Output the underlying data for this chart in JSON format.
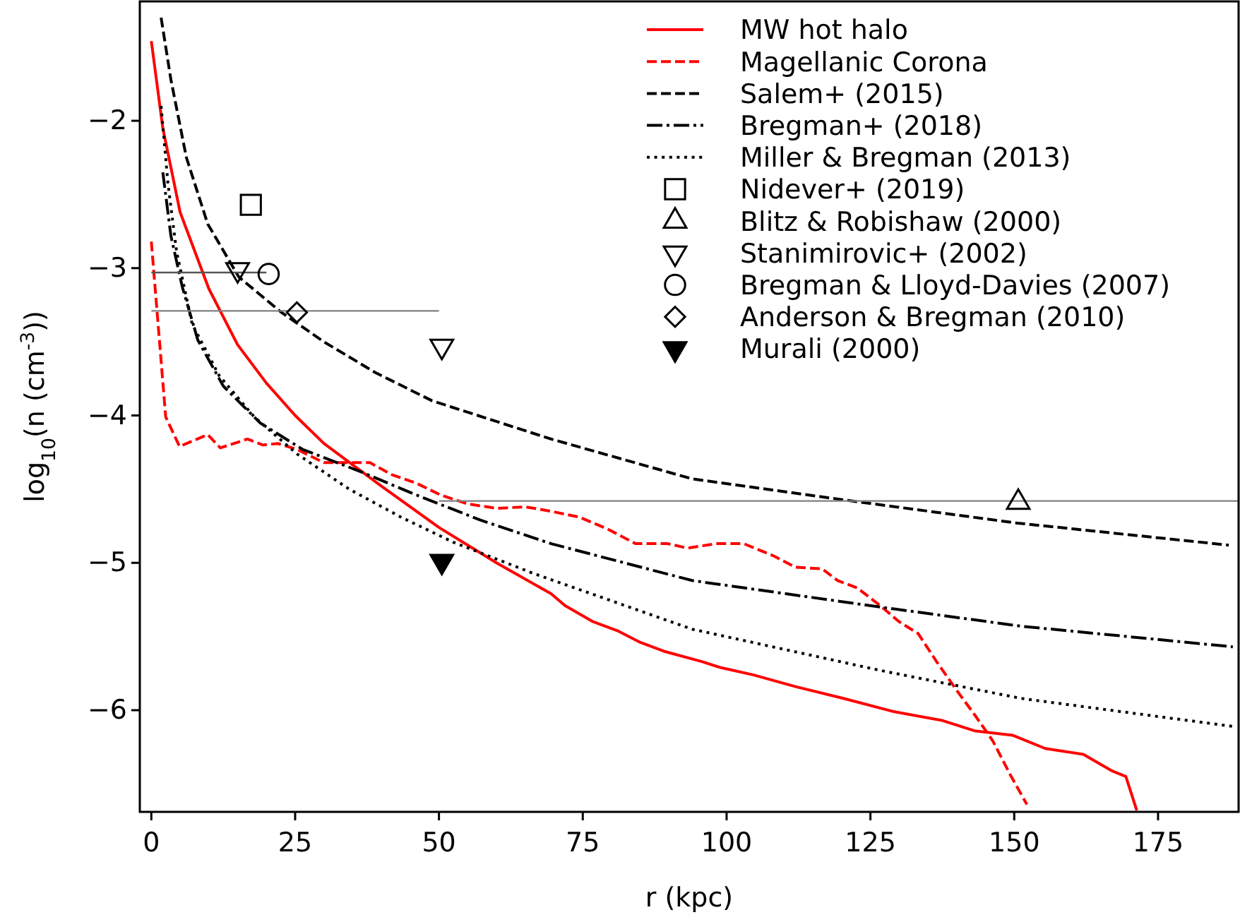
{
  "chart_data": {
    "type": "line",
    "xlabel": "r (kpc)",
    "ylabel": "log$_{10}$(n (cm$^{-3}$))",
    "xlim": [
      -2,
      189
    ],
    "ylim": [
      -6.69,
      -1.19
    ],
    "xticks": [
      0,
      25,
      50,
      75,
      100,
      125,
      150,
      175
    ],
    "yticks": [
      -6,
      -5,
      -4,
      -3,
      -2
    ],
    "grid": false,
    "legend": "top right",
    "series": [
      {
        "name": "MW hot halo",
        "line_style": "solid",
        "color": "#ff0000",
        "x": [
          0,
          2,
          5,
          10,
          15,
          20,
          25,
          30,
          40,
          50,
          60,
          69.5,
          71.9,
          76.8,
          81,
          85,
          89.1,
          95.7,
          98.9,
          104.6,
          112,
          120.3,
          129.1,
          137.5,
          143.1,
          149.7,
          155.4,
          162,
          166.9,
          169.4,
          171.3
        ],
        "values": [
          -1.46,
          -2.05,
          -2.62,
          -3.14,
          -3.52,
          -3.78,
          -4.0,
          -4.19,
          -4.48,
          -4.76,
          -5.0,
          -5.21,
          -5.29,
          -5.4,
          -5.46,
          -5.54,
          -5.6,
          -5.67,
          -5.71,
          -5.76,
          -5.84,
          -5.92,
          -6.01,
          -6.07,
          -6.14,
          -6.17,
          -6.26,
          -6.3,
          -6.41,
          -6.45,
          -6.68
        ]
      },
      {
        "name": "Magellanic Corona",
        "line_style": "dashed",
        "color": "#ff0000",
        "x": [
          0,
          2.5,
          4.9,
          9.8,
          12,
          16.7,
          19.4,
          22,
          25.3,
          30,
          34.4,
          38,
          41.7,
          46.1,
          50.3,
          55,
          60,
          65,
          69.5,
          74.4,
          79.3,
          84.2,
          89.8,
          93.2,
          98.2,
          103,
          108,
          112,
          116.6,
          119.3,
          122.7,
          126.7,
          130,
          133.3,
          136.5,
          139.9,
          143.1,
          146.3,
          149.2,
          152.2
        ],
        "values": [
          -2.82,
          -4.01,
          -4.21,
          -4.13,
          -4.22,
          -4.16,
          -4.2,
          -4.19,
          -4.23,
          -4.32,
          -4.32,
          -4.32,
          -4.4,
          -4.46,
          -4.54,
          -4.6,
          -4.63,
          -4.62,
          -4.65,
          -4.69,
          -4.77,
          -4.87,
          -4.87,
          -4.9,
          -4.87,
          -4.87,
          -4.95,
          -5.03,
          -5.04,
          -5.12,
          -5.17,
          -5.29,
          -5.4,
          -5.48,
          -5.67,
          -5.86,
          -6.03,
          -6.21,
          -6.43,
          -6.64
        ]
      },
      {
        "name": "Salem+ (2015)",
        "line_style": "dashed",
        "color": "#000000",
        "x": [
          1.7,
          3.4,
          6.1,
          9.8,
          15.2,
          22.6,
          30,
          39,
          48.8,
          69.5,
          94,
          121.7,
          150.5,
          187.3
        ],
        "values": [
          -1.3,
          -1.72,
          -2.25,
          -2.7,
          -3.06,
          -3.3,
          -3.5,
          -3.71,
          -3.9,
          -4.16,
          -4.43,
          -4.58,
          -4.73,
          -4.88
        ]
      },
      {
        "name": "Bregman+ (2018)",
        "line_style": "dashdot",
        "color": "#000000",
        "x": [
          2,
          3.4,
          5.4,
          8.1,
          12.5,
          18.9,
          26.3,
          36.3,
          46.1,
          57.2,
          69.5,
          94,
          126.7,
          151.2,
          188
        ],
        "values": [
          -2.35,
          -2.78,
          -3.13,
          -3.49,
          -3.8,
          -4.05,
          -4.23,
          -4.38,
          -4.54,
          -4.71,
          -4.87,
          -5.12,
          -5.3,
          -5.43,
          -5.57
        ]
      },
      {
        "name": "Miller & Bregman (2013)",
        "line_style": "dotted",
        "color": "#000000",
        "x": [
          1.7,
          2.9,
          4.4,
          7.1,
          11.8,
          17.9,
          25.3,
          34.4,
          43.4,
          52.5,
          66.3,
          94,
          126.7,
          151.2,
          188
        ],
        "values": [
          -1.9,
          -2.43,
          -2.89,
          -3.38,
          -3.73,
          -4.01,
          -4.26,
          -4.5,
          -4.69,
          -4.86,
          -5.07,
          -5.45,
          -5.73,
          -5.92,
          -6.11
        ]
      },
      {
        "line_style": "solid",
        "color": "#555555",
        "x": [
          0,
          20
        ],
        "values": [
          -3.03,
          -3.03
        ]
      },
      {
        "line_style": "solid",
        "color": "#808080",
        "x": [
          0,
          50
        ],
        "values": [
          -3.29,
          -3.29
        ]
      },
      {
        "line_style": "solid",
        "color": "#808080",
        "x": [
          50,
          189
        ],
        "values": [
          -4.58,
          -4.58
        ]
      },
      {
        "name": "Nidever+ (2019)",
        "type": "scatter",
        "marker": "square",
        "color": "#000000",
        "x": [
          17.3
        ],
        "values": [
          -2.57
        ]
      },
      {
        "name": "Blitz & Robishaw (2000)",
        "type": "scatter",
        "marker": "triangle",
        "color": "#000000",
        "x": [
          150.7
        ],
        "values": [
          -4.59
        ]
      },
      {
        "name": "Stanimirovic+ (2002)",
        "type": "scatter",
        "marker": "triangle-down",
        "color": "#000000",
        "x": [
          15,
          50.5
        ],
        "values": [
          -3.01,
          -3.53
        ]
      },
      {
        "name": "Bregman & Lloyd-Davies (2007)",
        "type": "scatter",
        "marker": "circle",
        "color": "#000000",
        "x": [
          20.4
        ],
        "values": [
          -3.04
        ]
      },
      {
        "name": "Anderson & Bregman (2010)",
        "type": "scatter",
        "marker": "diamond",
        "color": "#000000",
        "x": [
          25.3
        ],
        "values": [
          -3.3
        ]
      },
      {
        "name": "Murali (2000)",
        "type": "scatter",
        "marker": "triangle-down-filled",
        "color": "#000000",
        "x": [
          50.5
        ],
        "values": [
          -4.99
        ]
      }
    ]
  }
}
